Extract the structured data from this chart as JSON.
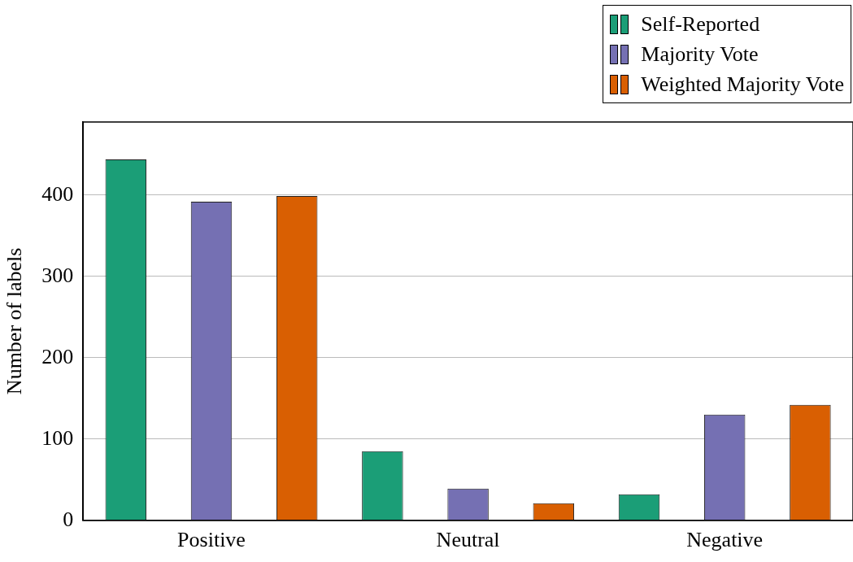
{
  "chart_data": {
    "type": "bar",
    "ylabel": "Number of labels",
    "categories": [
      "Positive",
      "Neutral",
      "Negative"
    ],
    "series": [
      {
        "name": "Self-Reported",
        "color": "#1b9e77",
        "values": [
          444,
          85,
          32
        ]
      },
      {
        "name": "Majority Vote",
        "color": "#7570b3",
        "values": [
          392,
          39,
          130
        ]
      },
      {
        "name": "Weighted Majority Vote",
        "color": "#d95f02",
        "values": [
          399,
          21,
          142
        ]
      }
    ],
    "ylim": [
      0,
      490
    ],
    "yticks": [
      0,
      100,
      200,
      300,
      400
    ],
    "grid": "y",
    "legend": "top right"
  }
}
